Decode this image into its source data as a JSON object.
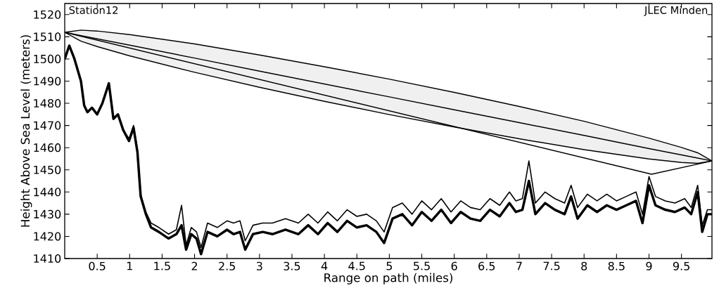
{
  "chart_data": {
    "type": "line",
    "xlabel": "Range on path (miles)",
    "ylabel": "Height Above Sea Level (meters)",
    "annotations": [
      "Station12",
      "JLEC Minden"
    ],
    "xlim": [
      0,
      9.97
    ],
    "ylim": [
      1410,
      1525
    ],
    "xticks": [
      0.5,
      1,
      1.5,
      2,
      2.5,
      3,
      3.5,
      4,
      4.5,
      5,
      5.5,
      6,
      6.5,
      7,
      7.5,
      8,
      8.5,
      9,
      9.5
    ],
    "yticks": [
      1410,
      1420,
      1430,
      1440,
      1450,
      1460,
      1470,
      1480,
      1490,
      1500,
      1510,
      1520
    ],
    "grid": false,
    "legend": false,
    "marker": "none",
    "line_style": "solid",
    "x": [
      0,
      0.07,
      0.15,
      0.25,
      0.3,
      0.35,
      0.42,
      0.5,
      0.58,
      0.68,
      0.75,
      0.82,
      0.9,
      0.99,
      1.06,
      1.12,
      1.17,
      1.25,
      1.33,
      1.45,
      1.6,
      1.72,
      1.8,
      1.87,
      1.95,
      2.03,
      2.1,
      2.2,
      2.35,
      2.5,
      2.6,
      2.7,
      2.78,
      2.9,
      3.05,
      3.2,
      3.4,
      3.6,
      3.75,
      3.9,
      4.05,
      4.2,
      4.35,
      4.5,
      4.65,
      4.8,
      4.92,
      5.05,
      5.2,
      5.35,
      5.5,
      5.65,
      5.8,
      5.95,
      6.1,
      6.25,
      6.4,
      6.55,
      6.7,
      6.85,
      6.95,
      7.05,
      7.15,
      7.25,
      7.4,
      7.55,
      7.7,
      7.8,
      7.9,
      8.05,
      8.2,
      8.35,
      8.5,
      8.65,
      8.8,
      8.9,
      9.0,
      9.1,
      9.25,
      9.4,
      9.55,
      9.65,
      9.75,
      9.82,
      9.9,
      9.97
    ],
    "series": [
      {
        "color": "#000000",
        "values": [
          1500,
          1506,
          1500,
          1490,
          1479,
          1476,
          1478,
          1475,
          1480,
          1489,
          1473,
          1475,
          1468,
          1463,
          1469,
          1458,
          1438,
          1430,
          1424,
          1422,
          1419,
          1421,
          1425,
          1414,
          1421,
          1419,
          1412,
          1422,
          1420,
          1423,
          1421,
          1422,
          1414,
          1421,
          1422,
          1421,
          1423,
          1421,
          1425,
          1421,
          1426,
          1422,
          1427,
          1424,
          1425,
          1422,
          1417,
          1428,
          1430,
          1425,
          1431,
          1427,
          1432,
          1426,
          1431,
          1428,
          1427,
          1432,
          1429,
          1435,
          1431,
          1432,
          1445,
          1430,
          1435,
          1432,
          1430,
          1438,
          1428,
          1434,
          1431,
          1434,
          1432,
          1434,
          1436,
          1426,
          1443,
          1434,
          1432,
          1431,
          1433,
          1430,
          1440,
          1422,
          1430,
          1430
        ]
      },
      {
        "color": "#000000",
        "values": [
          1500,
          1506,
          1500,
          1490,
          1479,
          1476,
          1478,
          1475,
          1480,
          1489,
          1473,
          1475,
          1468,
          1464,
          1470,
          1459,
          1439,
          1431,
          1426,
          1424,
          1421,
          1423,
          1434,
          1416,
          1424,
          1422,
          1415,
          1426,
          1424,
          1427,
          1426,
          1427,
          1418,
          1425,
          1426,
          1426,
          1428,
          1426,
          1430,
          1426,
          1431,
          1427,
          1432,
          1429,
          1430,
          1427,
          1422,
          1433,
          1435,
          1430,
          1436,
          1432,
          1437,
          1431,
          1436,
          1433,
          1432,
          1437,
          1434,
          1440,
          1436,
          1437,
          1454,
          1435,
          1440,
          1437,
          1435,
          1443,
          1433,
          1439,
          1436,
          1439,
          1436,
          1438,
          1440,
          1430,
          1447,
          1438,
          1436,
          1435,
          1437,
          1433,
          1443,
          1425,
          1432,
          1432
        ]
      },
      {
        "color": "#000000",
        "x": [
          0,
          0.25,
          0.5,
          1,
          2,
          3,
          4,
          5,
          6,
          7,
          8,
          9,
          9.5,
          9.75,
          9.97
        ],
        "values": [
          1512,
          1510.5,
          1509.1,
          1506.2,
          1500.4,
          1494.5,
          1488.7,
          1482.9,
          1477.1,
          1471.3,
          1465.5,
          1459.6,
          1456.7,
          1455.3,
          1454
        ],
        "upper": [
          1512,
          1513.0,
          1512.6,
          1511.0,
          1506.8,
          1501.8,
          1496.5,
          1490.9,
          1484.9,
          1478.6,
          1471.9,
          1464.3,
          1460.1,
          1457.7,
          1454
        ],
        "lower": [
          1512,
          1508.0,
          1505.6,
          1501.4,
          1494.0,
          1487.2,
          1480.9,
          1474.9,
          1469.3,
          1464.0,
          1459.1,
          1454.9,
          1453.3,
          1452.9,
          1454
        ]
      },
      {
        "color": "#000000",
        "x": [
          0,
          9.04,
          9.97
        ],
        "values": [
          1512,
          1448,
          1454
        ]
      }
    ]
  }
}
